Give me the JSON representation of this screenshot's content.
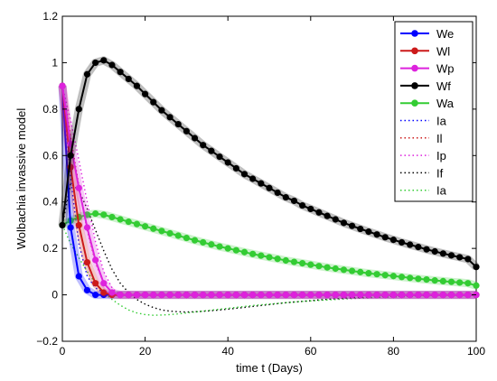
{
  "chart_data": {
    "type": "line",
    "title": "",
    "xlabel": "time t (Days)",
    "ylabel": "Wolbachia invassive model",
    "xlim": [
      0,
      100
    ],
    "ylim": [
      -0.2,
      1.2
    ],
    "xticks": [
      0,
      20,
      40,
      60,
      80,
      100
    ],
    "yticks": [
      -0.2,
      0,
      0.2,
      0.4,
      0.6,
      0.8,
      1,
      1.2
    ],
    "xtick_labels": [
      "0",
      "20",
      "40",
      "60",
      "80",
      "100"
    ],
    "ytick_labels": [
      "−0.2",
      "0",
      "0.2",
      "0.4",
      "0.6",
      "0.8",
      "1",
      "1.2"
    ],
    "grid": false,
    "legend_position": "top-right",
    "x": [
      0,
      2,
      4,
      6,
      8,
      10,
      12,
      14,
      16,
      18,
      20,
      22,
      24,
      26,
      28,
      30,
      32,
      34,
      36,
      38,
      40,
      42,
      44,
      46,
      48,
      50,
      52,
      54,
      56,
      58,
      60,
      62,
      64,
      66,
      68,
      70,
      72,
      74,
      76,
      78,
      80,
      82,
      84,
      86,
      88,
      90,
      92,
      94,
      96,
      98,
      100
    ],
    "series": [
      {
        "name": "We",
        "color": "#0000ff",
        "style": "solid",
        "marker": true,
        "values": [
          0.9,
          0.29,
          0.08,
          0.02,
          0.0,
          0.0,
          0.0,
          0.0,
          0.0,
          0.0,
          0.0,
          0.0,
          0.0,
          0.0,
          0.0,
          0.0,
          0.0,
          0.0,
          0.0,
          0.0,
          0.0,
          0.0,
          0.0,
          0.0,
          0.0,
          0.0,
          0.0,
          0.0,
          0.0,
          0.0,
          0.0,
          0.0,
          0.0,
          0.0,
          0.0,
          0.0,
          0.0,
          0.0,
          0.0,
          0.0,
          0.0,
          0.0,
          0.0,
          0.0,
          0.0,
          0.0,
          0.0,
          0.0,
          0.0,
          0.0,
          0.0
        ]
      },
      {
        "name": "Wl",
        "color": "#cc1a1a",
        "style": "solid",
        "marker": true,
        "values": [
          0.9,
          0.55,
          0.3,
          0.14,
          0.05,
          0.01,
          0.0,
          0.0,
          0.0,
          0.0,
          0.0,
          0.0,
          0.0,
          0.0,
          0.0,
          0.0,
          0.0,
          0.0,
          0.0,
          0.0,
          0.0,
          0.0,
          0.0,
          0.0,
          0.0,
          0.0,
          0.0,
          0.0,
          0.0,
          0.0,
          0.0,
          0.0,
          0.0,
          0.0,
          0.0,
          0.0,
          0.0,
          0.0,
          0.0,
          0.0,
          0.0,
          0.0,
          0.0,
          0.0,
          0.0,
          0.0,
          0.0,
          0.0,
          0.0,
          0.0,
          0.0
        ]
      },
      {
        "name": "Wp",
        "color": "#dd22dd",
        "style": "solid",
        "marker": true,
        "values": [
          0.9,
          0.65,
          0.46,
          0.29,
          0.15,
          0.05,
          0.01,
          0.0,
          0.0,
          0.0,
          0.0,
          0.0,
          0.0,
          0.0,
          0.0,
          0.0,
          0.0,
          0.0,
          0.0,
          0.0,
          0.0,
          0.0,
          0.0,
          0.0,
          0.0,
          0.0,
          0.0,
          0.0,
          0.0,
          0.0,
          0.0,
          0.0,
          0.0,
          0.0,
          0.0,
          0.0,
          0.0,
          0.0,
          0.0,
          0.0,
          0.0,
          0.0,
          0.0,
          0.0,
          0.0,
          0.0,
          0.0,
          0.0,
          0.0,
          0.0,
          0.0
        ]
      },
      {
        "name": "Wf",
        "color": "#000000",
        "style": "solid",
        "marker": true,
        "values": [
          0.3,
          0.6,
          0.8,
          0.95,
          1.0,
          1.01,
          0.99,
          0.96,
          0.93,
          0.9,
          0.865,
          0.83,
          0.795,
          0.765,
          0.735,
          0.705,
          0.675,
          0.645,
          0.62,
          0.595,
          0.57,
          0.545,
          0.52,
          0.5,
          0.48,
          0.46,
          0.44,
          0.42,
          0.405,
          0.385,
          0.37,
          0.355,
          0.34,
          0.325,
          0.31,
          0.297,
          0.284,
          0.272,
          0.26,
          0.248,
          0.237,
          0.226,
          0.216,
          0.206,
          0.196,
          0.187,
          0.178,
          0.17,
          0.162,
          0.154,
          0.12
        ]
      },
      {
        "name": "Wa",
        "color": "#33cc33",
        "style": "solid",
        "marker": true,
        "values": [
          0.3,
          0.32,
          0.335,
          0.345,
          0.35,
          0.345,
          0.335,
          0.325,
          0.315,
          0.305,
          0.295,
          0.285,
          0.275,
          0.265,
          0.255,
          0.245,
          0.235,
          0.226,
          0.217,
          0.208,
          0.2,
          0.192,
          0.184,
          0.176,
          0.169,
          0.162,
          0.155,
          0.148,
          0.142,
          0.136,
          0.13,
          0.124,
          0.118,
          0.113,
          0.108,
          0.103,
          0.098,
          0.093,
          0.089,
          0.085,
          0.081,
          0.077,
          0.073,
          0.069,
          0.066,
          0.062,
          0.059,
          0.056,
          0.053,
          0.05,
          0.04
        ]
      },
      {
        "name": "Ia",
        "color": "#0000ff",
        "style": "dotted",
        "marker": false,
        "values": [
          0.9,
          0.5,
          0.22,
          0.08,
          0.03,
          0.01,
          0.0,
          0.0,
          0.0,
          0.0,
          0.0,
          0.0,
          0.0,
          0.0,
          0.0,
          0.0,
          0.0,
          0.0,
          0.0,
          0.0,
          0.0,
          0.0,
          0.0,
          0.0,
          0.0,
          0.0,
          0.0,
          0.0,
          0.0,
          0.0,
          0.0,
          0.0,
          0.0,
          0.0,
          0.0,
          0.0,
          0.0,
          0.0,
          0.0,
          0.0,
          0.0,
          0.0,
          0.0,
          0.0,
          0.0,
          0.0,
          0.0,
          0.0,
          0.0,
          0.0,
          0.0
        ]
      },
      {
        "name": "Il",
        "color": "#cc1a1a",
        "style": "dotted",
        "marker": false,
        "values": [
          0.9,
          0.68,
          0.47,
          0.28,
          0.14,
          0.05,
          0.01,
          0.0,
          0.0,
          0.0,
          0.0,
          0.0,
          0.0,
          0.0,
          0.0,
          0.0,
          0.0,
          0.0,
          0.0,
          0.0,
          0.0,
          0.0,
          0.0,
          0.0,
          0.0,
          0.0,
          0.0,
          0.0,
          0.0,
          0.0,
          0.0,
          0.0,
          0.0,
          0.0,
          0.0,
          0.0,
          0.0,
          0.0,
          0.0,
          0.0,
          0.0,
          0.0,
          0.0,
          0.0,
          0.0,
          0.0,
          0.0,
          0.0,
          0.0,
          0.0,
          0.0
        ]
      },
      {
        "name": "Ip",
        "color": "#dd22dd",
        "style": "dotted",
        "marker": false,
        "values": [
          0.9,
          0.75,
          0.58,
          0.4,
          0.23,
          0.1,
          0.03,
          0.0,
          0.0,
          0.0,
          0.0,
          0.0,
          0.0,
          0.0,
          0.0,
          0.0,
          0.0,
          0.0,
          0.0,
          0.0,
          0.0,
          0.0,
          0.0,
          0.0,
          0.0,
          0.0,
          0.0,
          0.0,
          0.0,
          0.0,
          0.0,
          0.0,
          0.0,
          0.0,
          0.0,
          0.0,
          0.0,
          0.0,
          0.0,
          0.0,
          0.0,
          0.0,
          0.0,
          0.0,
          0.0,
          0.0,
          0.0,
          0.0,
          0.0,
          0.0,
          0.0
        ]
      },
      {
        "name": "If",
        "color": "#000000",
        "style": "dotted",
        "marker": false,
        "values": [
          0.3,
          0.48,
          0.45,
          0.37,
          0.28,
          0.19,
          0.11,
          0.05,
          0.01,
          -0.02,
          -0.04,
          -0.055,
          -0.065,
          -0.07,
          -0.073,
          -0.074,
          -0.073,
          -0.071,
          -0.068,
          -0.065,
          -0.062,
          -0.058,
          -0.054,
          -0.05,
          -0.046,
          -0.042,
          -0.038,
          -0.034,
          -0.031,
          -0.028,
          -0.025,
          -0.022,
          -0.019,
          -0.017,
          -0.015,
          -0.013,
          -0.011,
          -0.009,
          -0.008,
          -0.007,
          -0.006,
          -0.005,
          -0.004,
          -0.003,
          -0.002,
          -0.001,
          0.0,
          0.0,
          0.0,
          0.0,
          0.0
        ]
      },
      {
        "name": "Ia",
        "color": "#33cc33",
        "style": "dotted",
        "marker": false,
        "values": [
          0.3,
          0.22,
          0.16,
          0.1,
          0.05,
          0.01,
          -0.02,
          -0.045,
          -0.065,
          -0.078,
          -0.085,
          -0.088,
          -0.087,
          -0.085,
          -0.082,
          -0.078,
          -0.074,
          -0.07,
          -0.066,
          -0.062,
          -0.058,
          -0.054,
          -0.05,
          -0.046,
          -0.043,
          -0.04,
          -0.037,
          -0.034,
          -0.031,
          -0.028,
          -0.026,
          -0.024,
          -0.022,
          -0.02,
          -0.018,
          -0.016,
          -0.014,
          -0.012,
          -0.011,
          -0.01,
          -0.009,
          -0.008,
          -0.007,
          -0.006,
          -0.005,
          -0.004,
          -0.003,
          -0.002,
          -0.001,
          0.0,
          0.0
        ]
      }
    ]
  }
}
